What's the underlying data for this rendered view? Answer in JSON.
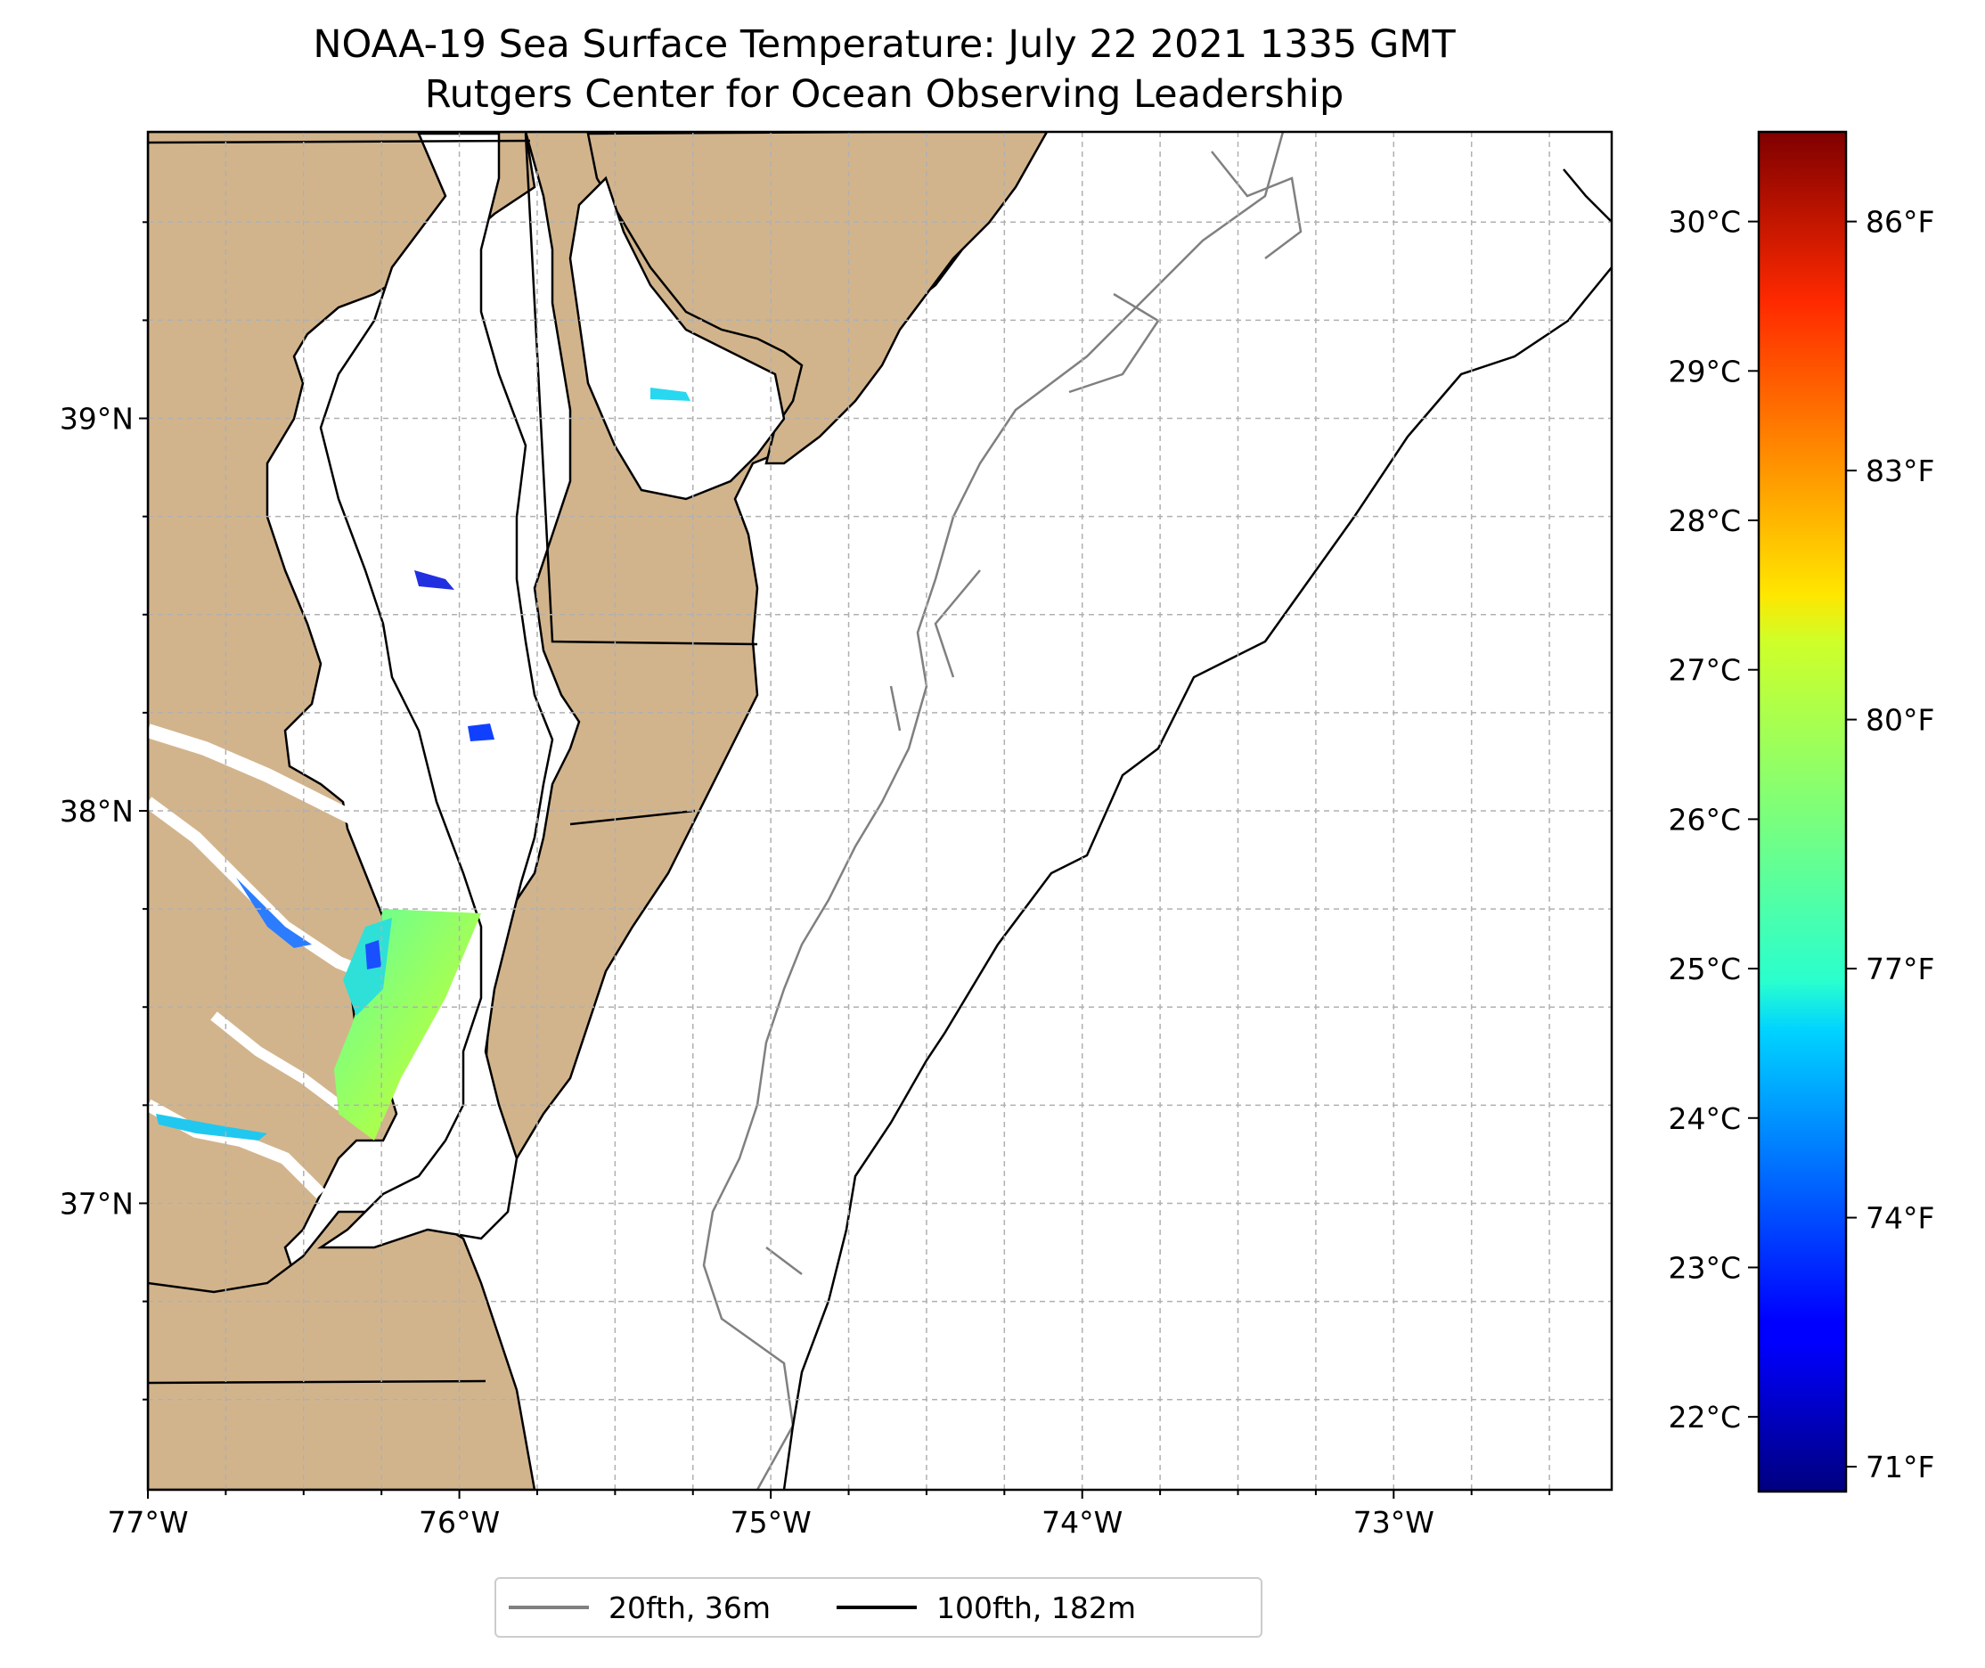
{
  "title": {
    "line1": "NOAA-19 Sea Surface Temperature: July 22 2021 1335 GMT",
    "line2": "Rutgers Center for Ocean Observing Leadership"
  },
  "map": {
    "extent": {
      "lon_min": -77.0,
      "lon_max": -72.3,
      "lat_min": 36.27,
      "lat_max": 39.73
    },
    "x_ticks": [
      {
        "lon": -77,
        "label": "77°W"
      },
      {
        "lon": -76,
        "label": "76°W"
      },
      {
        "lon": -75,
        "label": "75°W"
      },
      {
        "lon": -74,
        "label": "74°W"
      },
      {
        "lon": -73,
        "label": "73°W"
      }
    ],
    "y_ticks": [
      {
        "lat": 39,
        "label": "39°N"
      },
      {
        "lat": 38,
        "label": "38°N"
      },
      {
        "lat": 37,
        "label": "37°N"
      }
    ],
    "grid": "dashed, every 0.25°",
    "land_color": "#d2b48c",
    "ocean_color": "#ffffff"
  },
  "colorbar": {
    "colormap": "jet",
    "celsius_ticks": [
      {
        "value": 22,
        "label": "22°C"
      },
      {
        "value": 23,
        "label": "23°C"
      },
      {
        "value": 24,
        "label": "24°C"
      },
      {
        "value": 25,
        "label": "25°C"
      },
      {
        "value": 26,
        "label": "26°C"
      },
      {
        "value": 27,
        "label": "27°C"
      },
      {
        "value": 28,
        "label": "28°C"
      },
      {
        "value": 29,
        "label": "29°C"
      },
      {
        "value": 30,
        "label": "30°C"
      }
    ],
    "fahrenheit_ticks": [
      {
        "value": 71,
        "label": "71°F"
      },
      {
        "value": 74,
        "label": "74°F"
      },
      {
        "value": 77,
        "label": "77°F"
      },
      {
        "value": 80,
        "label": "80°F"
      },
      {
        "value": 83,
        "label": "83°F"
      },
      {
        "value": 86,
        "label": "86°F"
      }
    ],
    "range_celsius": [
      21.5,
      30.6
    ]
  },
  "legend": {
    "items": [
      {
        "label": "20fth, 36m",
        "color": "#808080"
      },
      {
        "label": "100fth, 182m",
        "color": "#000000"
      }
    ]
  }
}
